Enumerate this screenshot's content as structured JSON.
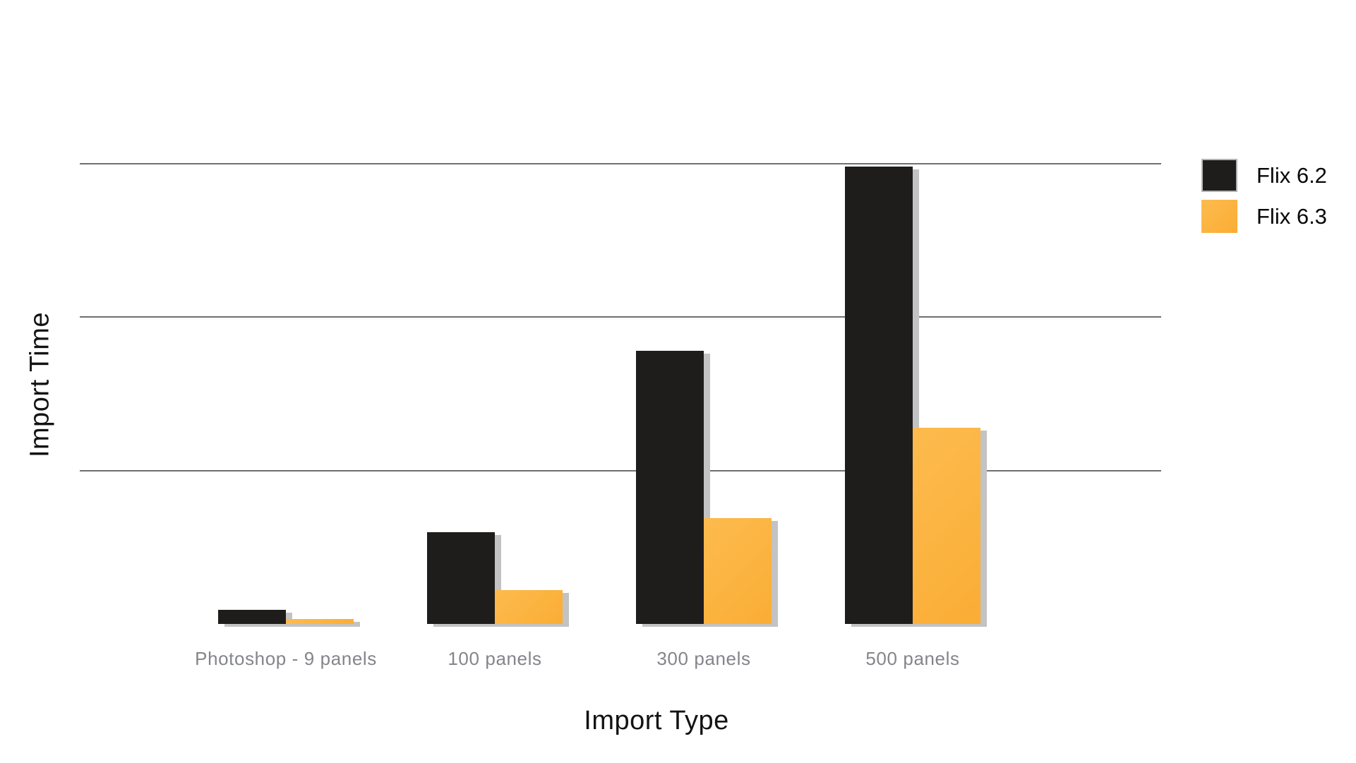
{
  "chart_data": {
    "type": "bar",
    "title": "",
    "xlabel": "Import Type",
    "ylabel": "Import Time",
    "categories": [
      "Photoshop - 9 panels",
      "100 panels",
      "300 panels",
      "500 panels"
    ],
    "series": [
      {
        "name": "Flix 6.2",
        "color": "#1f1c1c",
        "values": [
          0.09,
          0.6,
          1.78,
          2.98
        ]
      },
      {
        "name": "Flix 6.3",
        "color": "#faad35",
        "color_light": "#fdbb4e",
        "values": [
          0.03,
          0.22,
          0.69,
          1.28
        ]
      }
    ],
    "y_axis": {
      "tick_labels_visible": false,
      "gridline_values": [
        1,
        2,
        3
      ],
      "ylim": [
        0,
        3.38
      ],
      "note": "y-axis has no numeric tick labels; values expressed in gridline units (one gridline interval = 1)"
    },
    "grid": true,
    "legend_position": "top-right",
    "bar_shadow_color": "#c3c3c3",
    "gridline_color": "#6f6f6f",
    "tick_label_color": "#84858a"
  }
}
